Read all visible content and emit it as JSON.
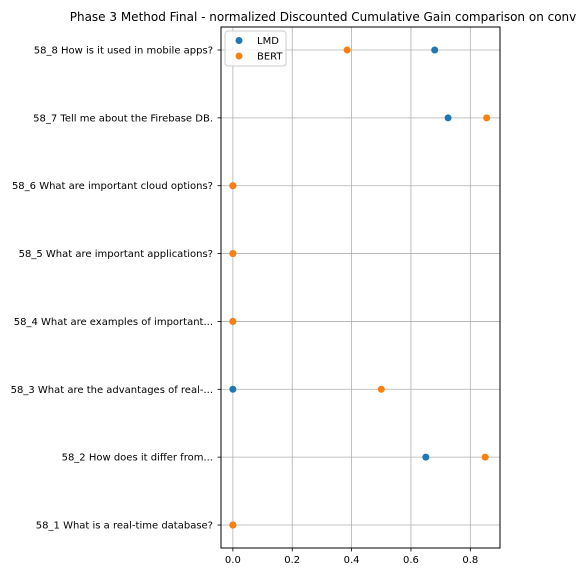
{
  "chart_data": {
    "type": "scatter",
    "title": "Phase 3 Method Final - normalized Discounted Cumulative Gain comparison on conv",
    "xlabel": "",
    "ylabel": "",
    "xlim": [
      -0.04,
      0.9
    ],
    "xticks": [
      0.0,
      0.2,
      0.4,
      0.6,
      0.8
    ],
    "xtick_labels": [
      "0.0",
      "0.2",
      "0.4",
      "0.6",
      "0.8"
    ],
    "grid": true,
    "legend_position": "top-left",
    "categories": [
      "58_1 What is a real-time database?",
      "58_2 How does it differ from...",
      "58_3 What are the advantages of real-...",
      "58_4 What are examples of important...",
      "58_5 What are important applications?",
      "58_6 What are important cloud options?",
      "58_7 Tell me about the Firebase DB.",
      "58_8 How is it used in mobile apps?"
    ],
    "series": [
      {
        "name": "LMD",
        "color": "#1f77b4",
        "values": [
          0.0,
          0.65,
          0.0,
          0.0,
          0.0,
          0.0,
          0.725,
          0.68
        ]
      },
      {
        "name": "BERT",
        "color": "#ff7f0e",
        "values": [
          0.0,
          0.85,
          0.5,
          0.0,
          0.0,
          0.0,
          0.855,
          0.385
        ]
      }
    ]
  }
}
